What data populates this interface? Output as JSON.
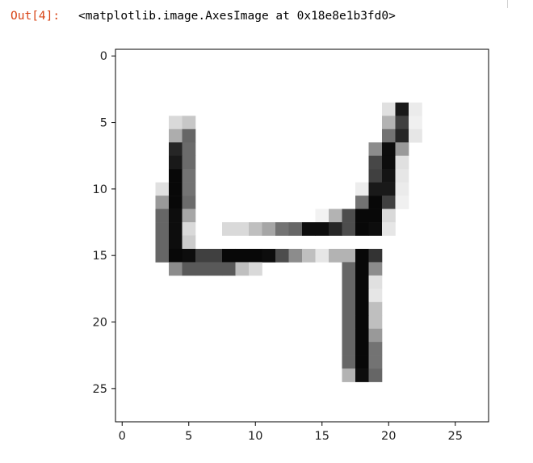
{
  "cell": {
    "prompt": "Out[4]:",
    "repr": "<matplotlib.image.AxesImage at 0x18e8e1b3fd0>"
  },
  "chart_data": {
    "type": "heatmap",
    "colormap": "gray_r",
    "rows": 28,
    "cols": 28,
    "xlim": [
      -0.5,
      27.5
    ],
    "ylim": [
      27.5,
      -0.5
    ],
    "xticks": [
      0,
      5,
      10,
      15,
      20,
      25
    ],
    "yticks": [
      0,
      5,
      10,
      15,
      20,
      25
    ],
    "xtick_labels": [
      "0",
      "5",
      "10",
      "15",
      "20",
      "25"
    ],
    "ytick_labels": [
      "0",
      "5",
      "10",
      "15",
      "20",
      "25"
    ],
    "pixels": [
      [
        4,
        5,
        0.15
      ],
      [
        5,
        5,
        0.22
      ],
      [
        20,
        4,
        0.12
      ],
      [
        21,
        4,
        0.9
      ],
      [
        22,
        4,
        0.08
      ],
      [
        4,
        6,
        0.32
      ],
      [
        5,
        6,
        0.6
      ],
      [
        20,
        5,
        0.3
      ],
      [
        21,
        5,
        0.75
      ],
      [
        22,
        5,
        0.06
      ],
      [
        4,
        7,
        0.85
      ],
      [
        5,
        7,
        0.58
      ],
      [
        20,
        6,
        0.55
      ],
      [
        21,
        6,
        0.85
      ],
      [
        22,
        6,
        0.1
      ],
      [
        4,
        8,
        0.9
      ],
      [
        5,
        8,
        0.58
      ],
      [
        19,
        7,
        0.45
      ],
      [
        20,
        7,
        0.95
      ],
      [
        21,
        7,
        0.4
      ],
      [
        4,
        9,
        0.97
      ],
      [
        5,
        9,
        0.55
      ],
      [
        19,
        8,
        0.72
      ],
      [
        20,
        8,
        0.95
      ],
      [
        21,
        8,
        0.12
      ],
      [
        3,
        10,
        0.12
      ],
      [
        4,
        10,
        0.97
      ],
      [
        5,
        10,
        0.55
      ],
      [
        19,
        9,
        0.75
      ],
      [
        20,
        9,
        0.92
      ],
      [
        21,
        9,
        0.1
      ],
      [
        3,
        11,
        0.4
      ],
      [
        4,
        11,
        0.97
      ],
      [
        5,
        11,
        0.58
      ],
      [
        18,
        10,
        0.07
      ],
      [
        19,
        10,
        0.9
      ],
      [
        20,
        10,
        0.9
      ],
      [
        21,
        10,
        0.08
      ],
      [
        3,
        12,
        0.6
      ],
      [
        4,
        12,
        0.95
      ],
      [
        5,
        12,
        0.35
      ],
      [
        18,
        11,
        0.55
      ],
      [
        19,
        11,
        0.97
      ],
      [
        20,
        11,
        0.75
      ],
      [
        21,
        11,
        0.06
      ],
      [
        3,
        13,
        0.6
      ],
      [
        4,
        13,
        0.95
      ],
      [
        5,
        13,
        0.15
      ],
      [
        15,
        12,
        0.05
      ],
      [
        16,
        12,
        0.3
      ],
      [
        17,
        12,
        0.7
      ],
      [
        18,
        12,
        0.97
      ],
      [
        19,
        12,
        0.97
      ],
      [
        20,
        12,
        0.15
      ],
      [
        3,
        14,
        0.6
      ],
      [
        4,
        14,
        0.95
      ],
      [
        5,
        14,
        0.2
      ],
      [
        8,
        13,
        0.15
      ],
      [
        9,
        13,
        0.15
      ],
      [
        10,
        13,
        0.25
      ],
      [
        11,
        13,
        0.35
      ],
      [
        12,
        13,
        0.55
      ],
      [
        13,
        13,
        0.6
      ],
      [
        14,
        13,
        0.95
      ],
      [
        15,
        13,
        0.95
      ],
      [
        16,
        13,
        0.85
      ],
      [
        17,
        13,
        0.7
      ],
      [
        18,
        13,
        0.97
      ],
      [
        19,
        13,
        0.95
      ],
      [
        20,
        13,
        0.1
      ],
      [
        3,
        15,
        0.6
      ],
      [
        4,
        15,
        0.97
      ],
      [
        5,
        15,
        0.95
      ],
      [
        6,
        15,
        0.75
      ],
      [
        7,
        15,
        0.75
      ],
      [
        8,
        15,
        0.97
      ],
      [
        9,
        15,
        0.97
      ],
      [
        10,
        15,
        0.97
      ],
      [
        11,
        15,
        0.95
      ],
      [
        12,
        15,
        0.7
      ],
      [
        13,
        15,
        0.45
      ],
      [
        14,
        15,
        0.25
      ],
      [
        15,
        15,
        0.1
      ],
      [
        16,
        15,
        0.3
      ],
      [
        17,
        15,
        0.3
      ],
      [
        18,
        15,
        0.97
      ],
      [
        19,
        15,
        0.8
      ],
      [
        4,
        16,
        0.45
      ],
      [
        5,
        16,
        0.65
      ],
      [
        6,
        16,
        0.65
      ],
      [
        7,
        16,
        0.65
      ],
      [
        8,
        16,
        0.65
      ],
      [
        9,
        16,
        0.25
      ],
      [
        10,
        16,
        0.15
      ],
      [
        17,
        16,
        0.6
      ],
      [
        18,
        16,
        0.97
      ],
      [
        19,
        16,
        0.45
      ],
      [
        17,
        17,
        0.6
      ],
      [
        18,
        17,
        0.97
      ],
      [
        19,
        17,
        0.12
      ],
      [
        17,
        18,
        0.6
      ],
      [
        18,
        18,
        0.97
      ],
      [
        19,
        18,
        0.1
      ],
      [
        17,
        19,
        0.6
      ],
      [
        18,
        19,
        0.97
      ],
      [
        19,
        19,
        0.25
      ],
      [
        17,
        20,
        0.6
      ],
      [
        18,
        20,
        0.97
      ],
      [
        19,
        20,
        0.25
      ],
      [
        17,
        21,
        0.6
      ],
      [
        18,
        21,
        0.97
      ],
      [
        19,
        21,
        0.4
      ],
      [
        17,
        22,
        0.6
      ],
      [
        18,
        22,
        0.97
      ],
      [
        19,
        22,
        0.55
      ],
      [
        17,
        23,
        0.6
      ],
      [
        18,
        23,
        0.97
      ],
      [
        19,
        23,
        0.55
      ],
      [
        17,
        24,
        0.3
      ],
      [
        18,
        24,
        0.95
      ],
      [
        19,
        24,
        0.6
      ]
    ]
  }
}
